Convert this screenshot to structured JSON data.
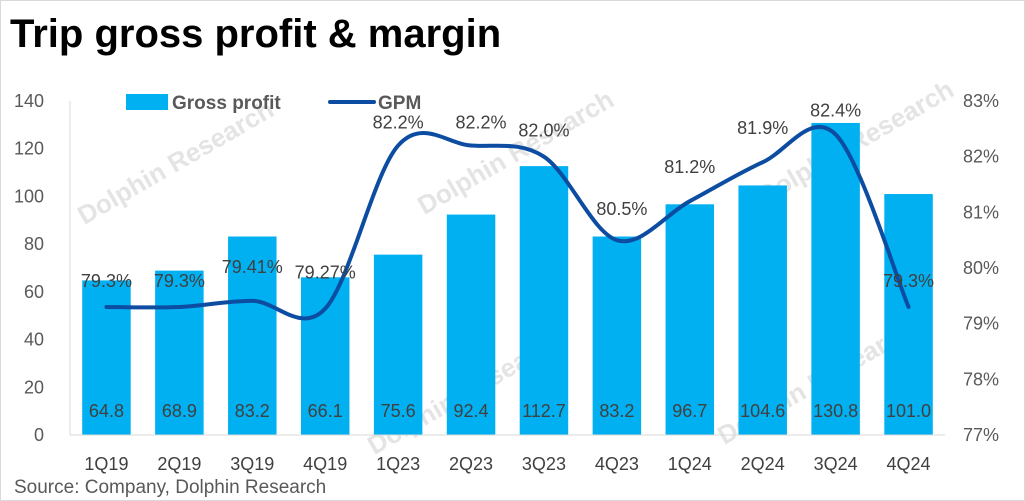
{
  "title": "Trip gross profit & margin",
  "source": "Source: Company, Dolphin Research",
  "watermark": "Dolphin Research",
  "chart_data": {
    "type": "bar",
    "categories": [
      "1Q19",
      "2Q19",
      "3Q19",
      "4Q19",
      "1Q23",
      "2Q23",
      "3Q23",
      "4Q23",
      "1Q24",
      "2Q24",
      "3Q24",
      "4Q24"
    ],
    "series": [
      {
        "name": "Gross profit",
        "type": "bar",
        "axis": "left",
        "color": "#00b0f0",
        "values": [
          64.8,
          68.9,
          83.2,
          66.1,
          75.6,
          92.4,
          112.7,
          83.2,
          96.7,
          104.6,
          130.8,
          101.0
        ],
        "labels": [
          "64.8",
          "68.9",
          "83.2",
          "66.1",
          "75.6",
          "92.4",
          "112.7",
          "83.2",
          "96.7",
          "104.6",
          "130.8",
          "101.0"
        ]
      },
      {
        "name": "GPM",
        "type": "line",
        "axis": "right",
        "color": "#0c4da2",
        "values": [
          79.3,
          79.3,
          79.41,
          79.27,
          82.2,
          82.2,
          82.0,
          80.5,
          81.2,
          81.9,
          82.4,
          79.3
        ],
        "labels": [
          "79.3%",
          "79.3%",
          "79.41%",
          "79.27%",
          "82.2%",
          "82.2%",
          "82.0%",
          "80.5%",
          "81.2%",
          "81.9%",
          "82.4%",
          "79.3%"
        ]
      }
    ],
    "y_left": {
      "min": 0,
      "max": 140,
      "ticks": [
        "0",
        "20",
        "40",
        "60",
        "80",
        "100",
        "120",
        "140"
      ]
    },
    "y_right": {
      "min": 77,
      "max": 83,
      "ticks": [
        "77%",
        "78%",
        "79%",
        "80%",
        "81%",
        "82%",
        "83%"
      ]
    },
    "legend": "top-left",
    "grid": false
  }
}
